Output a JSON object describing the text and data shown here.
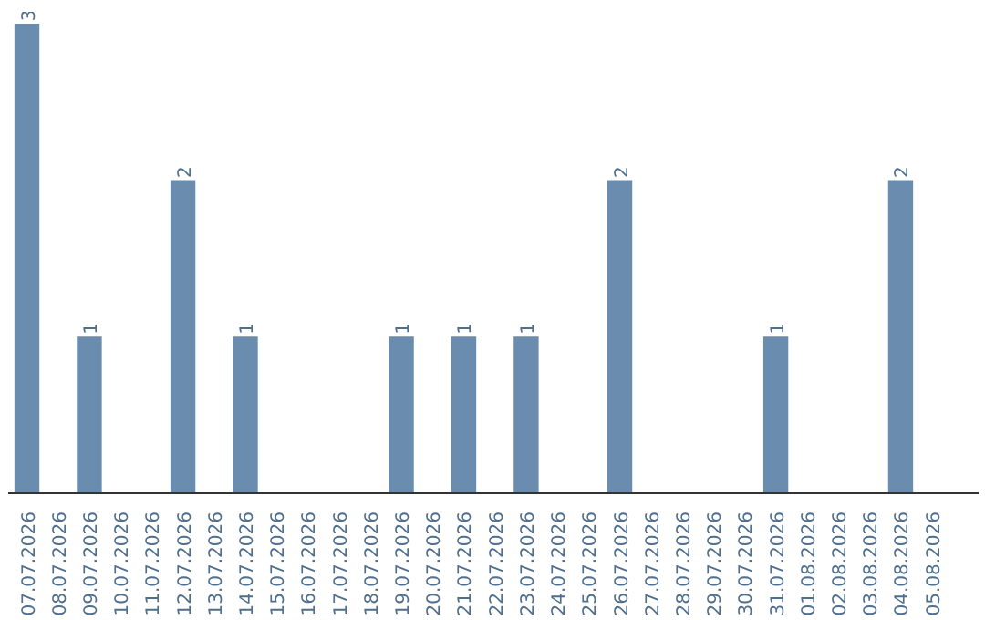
{
  "chart_data": {
    "type": "bar",
    "categories": [
      "07.07.2026",
      "08.07.2026",
      "09.07.2026",
      "10.07.2026",
      "11.07.2026",
      "12.07.2026",
      "13.07.2026",
      "14.07.2026",
      "15.07.2026",
      "16.07.2026",
      "17.07.2026",
      "18.07.2026",
      "19.07.2026",
      "20.07.2026",
      "21.07.2026",
      "22.07.2026",
      "23.07.2026",
      "24.07.2026",
      "25.07.2026",
      "26.07.2026",
      "27.07.2026",
      "28.07.2026",
      "29.07.2026",
      "30.07.2026",
      "31.07.2026",
      "01.08.2026",
      "02.08.2026",
      "03.08.2026",
      "04.08.2026",
      "05.08.2026"
    ],
    "values": [
      3,
      0,
      1,
      0,
      0,
      2,
      0,
      1,
      0,
      0,
      0,
      0,
      1,
      0,
      1,
      0,
      1,
      0,
      0,
      2,
      0,
      0,
      0,
      0,
      1,
      0,
      0,
      0,
      2,
      0
    ],
    "value_labels": [
      "3",
      null,
      "1",
      null,
      null,
      "2",
      null,
      "1",
      null,
      null,
      null,
      null,
      "1",
      null,
      "1",
      null,
      "1",
      null,
      null,
      "2",
      null,
      null,
      null,
      null,
      "1",
      null,
      null,
      null,
      "2",
      null
    ],
    "color": "#6a8caf"
  }
}
